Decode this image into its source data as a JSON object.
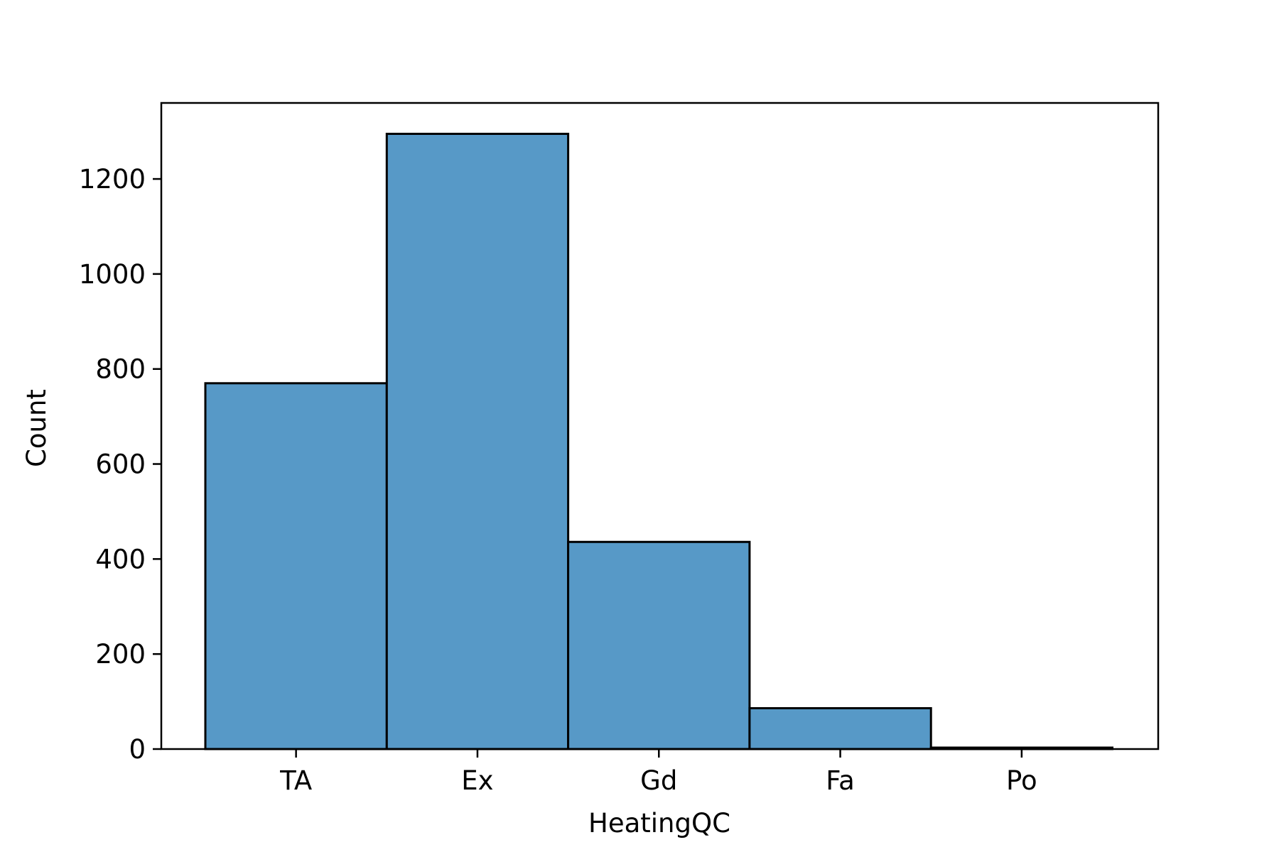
{
  "chart_data": {
    "type": "bar",
    "title": "",
    "xlabel": "HeatingQC",
    "ylabel": "Count",
    "categories": [
      "TA",
      "Ex",
      "Gd",
      "Fa",
      "Po"
    ],
    "values": [
      770,
      1295,
      436,
      86,
      3
    ],
    "ylim": [
      0,
      1360
    ],
    "yticks": [
      0,
      200,
      400,
      600,
      800,
      1000,
      1200
    ],
    "ytick_labels": [
      "0",
      "200",
      "400",
      "600",
      "800",
      "1000",
      "1200"
    ],
    "grid": false,
    "legend": "none",
    "colors": {
      "bar_fill": "#5799c7",
      "bar_edge": "#000000",
      "axes": "#000000"
    }
  }
}
